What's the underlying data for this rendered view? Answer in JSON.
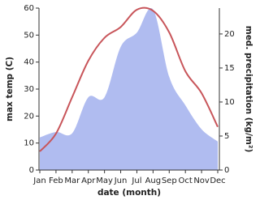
{
  "chart_data": {
    "type": "line-area",
    "x_label": "date (month)",
    "y_label": "max temp (C)",
    "y2_label": "med. precipitation (kg/m²)",
    "categories": [
      "Jan",
      "Feb",
      "Mar",
      "Apr",
      "May",
      "Jun",
      "Jul",
      "Aug",
      "Sep",
      "Oct",
      "Nov",
      "Dec"
    ],
    "ylim": [
      0,
      60
    ],
    "yticks": [
      0,
      10,
      20,
      30,
      40,
      50,
      60
    ],
    "y2lim": [
      0,
      23.8
    ],
    "y2ticks": [
      0,
      5,
      10,
      15,
      20
    ],
    "series": [
      {
        "name": "max temp",
        "color": "#c8555a",
        "values": [
          6.9,
          13.5,
          27,
          40.5,
          49,
          53,
          59.4,
          59,
          51,
          36.6,
          28.5,
          16
        ]
      },
      {
        "name": "med. precipitation",
        "color": "#b0bcf0",
        "axis": "y2",
        "values": [
          4.8,
          5.6,
          5.4,
          10.7,
          10.7,
          18.1,
          20.2,
          23.6,
          13.7,
          9.5,
          6,
          4.2
        ]
      }
    ]
  }
}
